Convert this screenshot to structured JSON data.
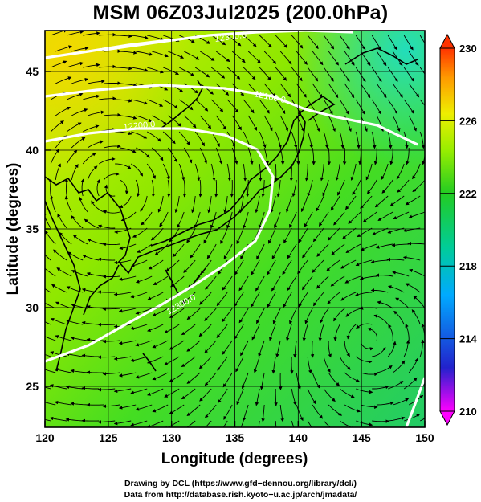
{
  "title": "MSM 06Z03Jul2025 (200.0hPa)",
  "x_axis": {
    "label": "Longitude (degrees)",
    "range": [
      120,
      150
    ],
    "ticks": [
      "120",
      "125",
      "130",
      "135",
      "140",
      "145",
      "150"
    ]
  },
  "y_axis": {
    "label": "Latitude  (degrees)",
    "range": [
      22.4,
      47.6
    ],
    "ticks": [
      "25",
      "30",
      "35",
      "40",
      "45"
    ]
  },
  "colorbar": {
    "min": 210,
    "max": 230,
    "labels": [
      "230",
      "226",
      "222",
      "218",
      "214",
      "210"
    ],
    "colors": [
      "#ff00ff",
      "#2222cc",
      "#00aaff",
      "#00cc99",
      "#22cc22",
      "#99ee00",
      "#eeee00",
      "#ff9900",
      "#ff3300"
    ]
  },
  "contours": [
    {
      "label": "12300.0"
    },
    {
      "label": "12300.0"
    },
    {
      "label": "12200.0"
    },
    {
      "label": "12100.0"
    }
  ],
  "footer": {
    "line1": "Drawing by DCL (https://www.gfd−dennou.org/library/dcl/)",
    "line2": "Data from http://database.rish.kyoto−u.ac.jp/arch/jmadata/"
  }
}
